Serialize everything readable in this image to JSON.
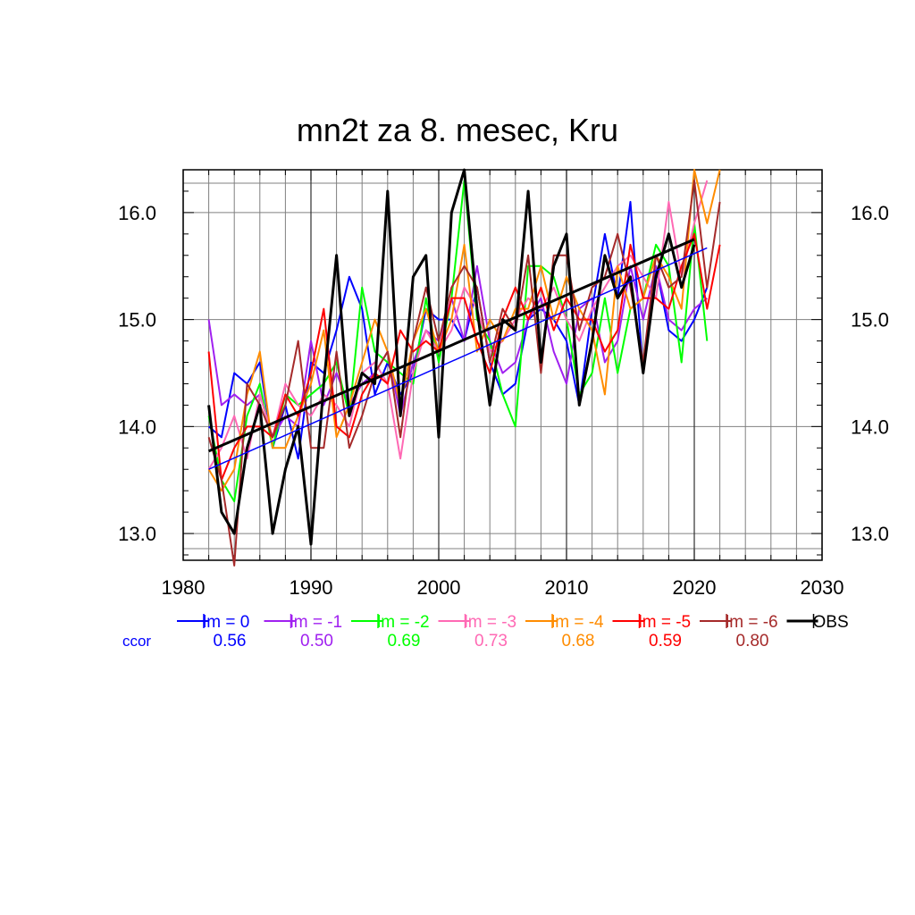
{
  "chart_data": {
    "type": "line",
    "title": "mn2t za 8. mesec, Kru",
    "xlabel": "",
    "ylabel": "",
    "xlim": [
      1980,
      2030
    ],
    "ylim": [
      12.75,
      16.4
    ],
    "x_ticks": [
      1980,
      1990,
      2000,
      2010,
      2020,
      2030
    ],
    "y_ticks": [
      13.0,
      14.0,
      15.0,
      16.0
    ],
    "y_tick_labels": [
      "13.0",
      "14.0",
      "15.0",
      "16.0"
    ],
    "grid": true,
    "legend_position": "bottom",
    "ccor_label": "ccor",
    "series": [
      {
        "name": "lm = 0",
        "ccor": "0.56",
        "color": "#0000ff",
        "x_start": 1982,
        "values": [
          14.0,
          13.9,
          14.5,
          14.4,
          14.6,
          13.8,
          14.2,
          13.7,
          14.6,
          14.5,
          14.9,
          15.4,
          15.1,
          14.3,
          14.6,
          14.3,
          14.5,
          15.1,
          15.0,
          15.0,
          14.8,
          15.3,
          14.6,
          14.3,
          14.4,
          15.0,
          15.1,
          15.0,
          14.8,
          14.2,
          15.1,
          15.8,
          15.2,
          16.1,
          14.5,
          15.5,
          14.9,
          14.8,
          15.0,
          15.3
        ]
      },
      {
        "name": "lm = -1",
        "ccor": "0.50",
        "color": "#a020f0",
        "x_start": 1982,
        "values": [
          15.0,
          14.2,
          14.3,
          14.2,
          14.3,
          13.9,
          14.1,
          14.0,
          14.8,
          14.2,
          14.5,
          14.2,
          14.4,
          14.5,
          14.7,
          14.1,
          14.6,
          14.9,
          14.8,
          15.2,
          14.8,
          15.5,
          14.8,
          14.5,
          14.6,
          15.0,
          15.2,
          14.7,
          14.4,
          15.1,
          15.2,
          14.6,
          14.8,
          15.5,
          15.0,
          15.5,
          15.0,
          14.9,
          15.1,
          15.2
        ]
      },
      {
        "name": "lm = -2",
        "ccor": "0.69",
        "color": "#00ff00",
        "x_start": 1982,
        "values": [
          14.1,
          13.5,
          13.3,
          14.1,
          14.4,
          13.8,
          14.3,
          14.2,
          14.3,
          14.4,
          14.6,
          14.1,
          15.3,
          14.7,
          14.6,
          14.5,
          14.4,
          15.2,
          14.6,
          15.2,
          16.3,
          15.0,
          14.8,
          14.3,
          14.0,
          15.5,
          15.5,
          15.4,
          15.0,
          14.3,
          14.5,
          15.2,
          14.5,
          15.1,
          15.2,
          15.7,
          15.5,
          14.6,
          15.9,
          14.8
        ]
      },
      {
        "name": "lm = -3",
        "ccor": "0.73",
        "color": "#ff69b4",
        "x_start": 1982,
        "values": [
          13.6,
          13.8,
          14.1,
          13.7,
          14.3,
          13.9,
          14.4,
          14.2,
          14.1,
          14.3,
          14.2,
          14.0,
          14.5,
          14.6,
          14.4,
          13.7,
          14.5,
          14.9,
          14.7,
          14.9,
          15.3,
          15.1,
          14.7,
          14.8,
          15.0,
          15.2,
          15.1,
          15.3,
          15.0,
          14.8,
          15.1,
          15.3,
          15.5,
          15.6,
          15.4,
          15.2,
          16.1,
          15.4,
          15.9,
          16.3
        ]
      },
      {
        "name": "lm = -4",
        "ccor": "0.68",
        "color": "#ff8c00",
        "x_start": 1982,
        "values": [
          13.6,
          13.4,
          13.6,
          14.3,
          14.7,
          13.8,
          13.8,
          14.1,
          14.4,
          14.9,
          13.9,
          14.2,
          14.6,
          15.0,
          14.7,
          14.2,
          14.8,
          15.1,
          14.7,
          15.0,
          15.7,
          14.7,
          15.0,
          14.8,
          15.1,
          15.1,
          15.5,
          15.0,
          15.4,
          15.1,
          14.9,
          14.3,
          15.5,
          15.1,
          15.2,
          15.6,
          15.4,
          15.1,
          16.4,
          15.9,
          16.4
        ]
      },
      {
        "name": "lm = -5",
        "ccor": "0.59",
        "color": "#ff0000",
        "x_start": 1982,
        "values": [
          14.7,
          13.5,
          13.8,
          14.0,
          14.0,
          13.9,
          14.3,
          14.1,
          14.5,
          15.1,
          14.0,
          13.9,
          14.3,
          14.5,
          14.4,
          14.9,
          14.7,
          14.8,
          14.7,
          15.2,
          15.2,
          14.8,
          14.5,
          15.0,
          15.3,
          15.0,
          15.3,
          14.9,
          15.2,
          15.0,
          15.0,
          14.7,
          14.9,
          15.7,
          15.2,
          15.2,
          15.1,
          15.5,
          15.8,
          15.1,
          15.7
        ]
      },
      {
        "name": "lm = -6",
        "ccor": "0.80",
        "color": "#a52a2a",
        "x_start": 1982,
        "values": [
          13.9,
          13.5,
          12.7,
          14.4,
          14.2,
          13.9,
          14.2,
          14.8,
          13.8,
          13.8,
          14.7,
          13.8,
          14.1,
          14.5,
          14.7,
          13.9,
          14.8,
          15.3,
          14.8,
          15.3,
          15.5,
          15.3,
          14.6,
          15.1,
          14.9,
          15.6,
          14.5,
          15.6,
          15.6,
          14.9,
          15.3,
          15.4,
          15.8,
          15.3,
          14.6,
          15.6,
          15.3,
          15.4,
          16.3,
          15.3,
          16.1
        ]
      },
      {
        "name": "OBS",
        "ccor": "",
        "color": "#000000",
        "x_start": 1982,
        "values": [
          14.2,
          13.2,
          13.0,
          13.8,
          14.2,
          13.0,
          13.6,
          14.0,
          12.9,
          14.4,
          15.6,
          14.1,
          14.5,
          14.4,
          16.2,
          14.1,
          15.4,
          15.6,
          13.9,
          16.0,
          16.4,
          15.1,
          14.2,
          15.0,
          14.9,
          16.2,
          14.6,
          15.5,
          15.8,
          14.2,
          14.8,
          15.6,
          15.2,
          15.4,
          14.5,
          15.4,
          15.8,
          15.3,
          15.7
        ]
      }
    ],
    "trend_lines": [
      {
        "color": "#0000ff",
        "x": [
          1982,
          2021
        ],
        "y": [
          13.6,
          15.67
        ]
      },
      {
        "color": "#000000",
        "x": [
          1982,
          2020
        ],
        "y": [
          13.77,
          15.75
        ]
      }
    ]
  }
}
